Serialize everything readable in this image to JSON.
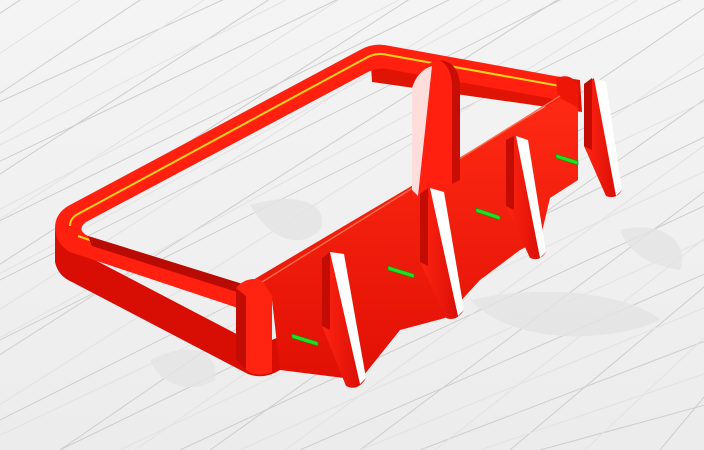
{
  "viewport": {
    "view": "perspective-3d-slice-preview",
    "background_color": "#f2f2f2",
    "grid": "on",
    "grid_color": "#c9c9c9"
  },
  "model": {
    "colors": {
      "outer_wall": "#ff1a0a",
      "outer_wall_shade": "#c40e05",
      "outer_wall_dark": "#9a0a03",
      "inner_wall": "#ffd21a",
      "fill_highlight": "#ffffff",
      "infill": "#22dd22"
    },
    "parts": {
      "base_frame": "perimeter-frame",
      "back_wall": "standing-wall",
      "fins": [
        "fin-1",
        "fin-2",
        "fin-3",
        "fin-4"
      ],
      "center_post": "rounded-post"
    }
  },
  "icons": {
    "shadow": "support-shadow-shape"
  }
}
